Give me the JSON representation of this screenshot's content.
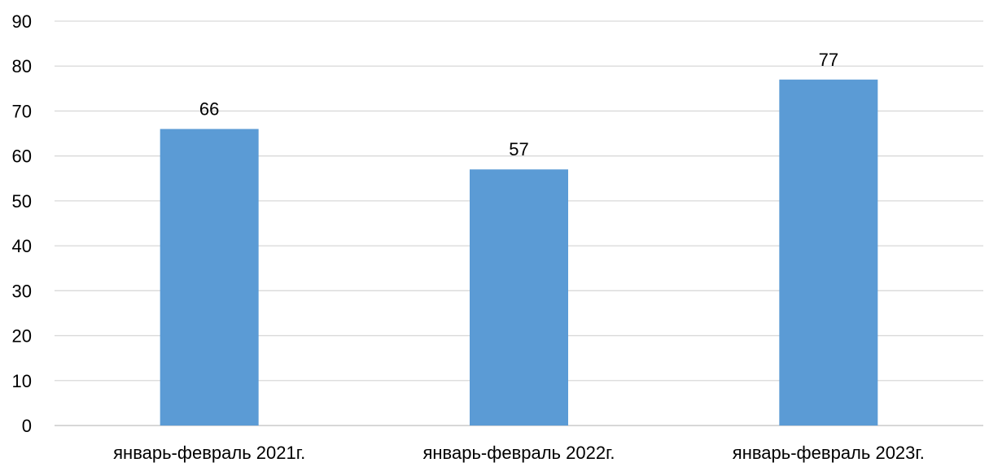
{
  "chart_data": {
    "type": "bar",
    "title": "",
    "xlabel": "",
    "ylabel": "",
    "categories": [
      "январь-февраль 2021г.",
      "январь-февраль 2022г.",
      "январь-февраль 2023г."
    ],
    "values": [
      66,
      57,
      77
    ],
    "data_labels": [
      "66",
      "57",
      "77"
    ],
    "ylim": [
      0,
      90
    ],
    "y_ticks": [
      0,
      10,
      20,
      30,
      40,
      50,
      60,
      70,
      80,
      90
    ],
    "y_tick_labels": [
      "0",
      "10",
      "20",
      "30",
      "40",
      "50",
      "60",
      "70",
      "80",
      "90"
    ],
    "grid": true,
    "legend": "none",
    "bar_color": "#5b9bd5"
  }
}
